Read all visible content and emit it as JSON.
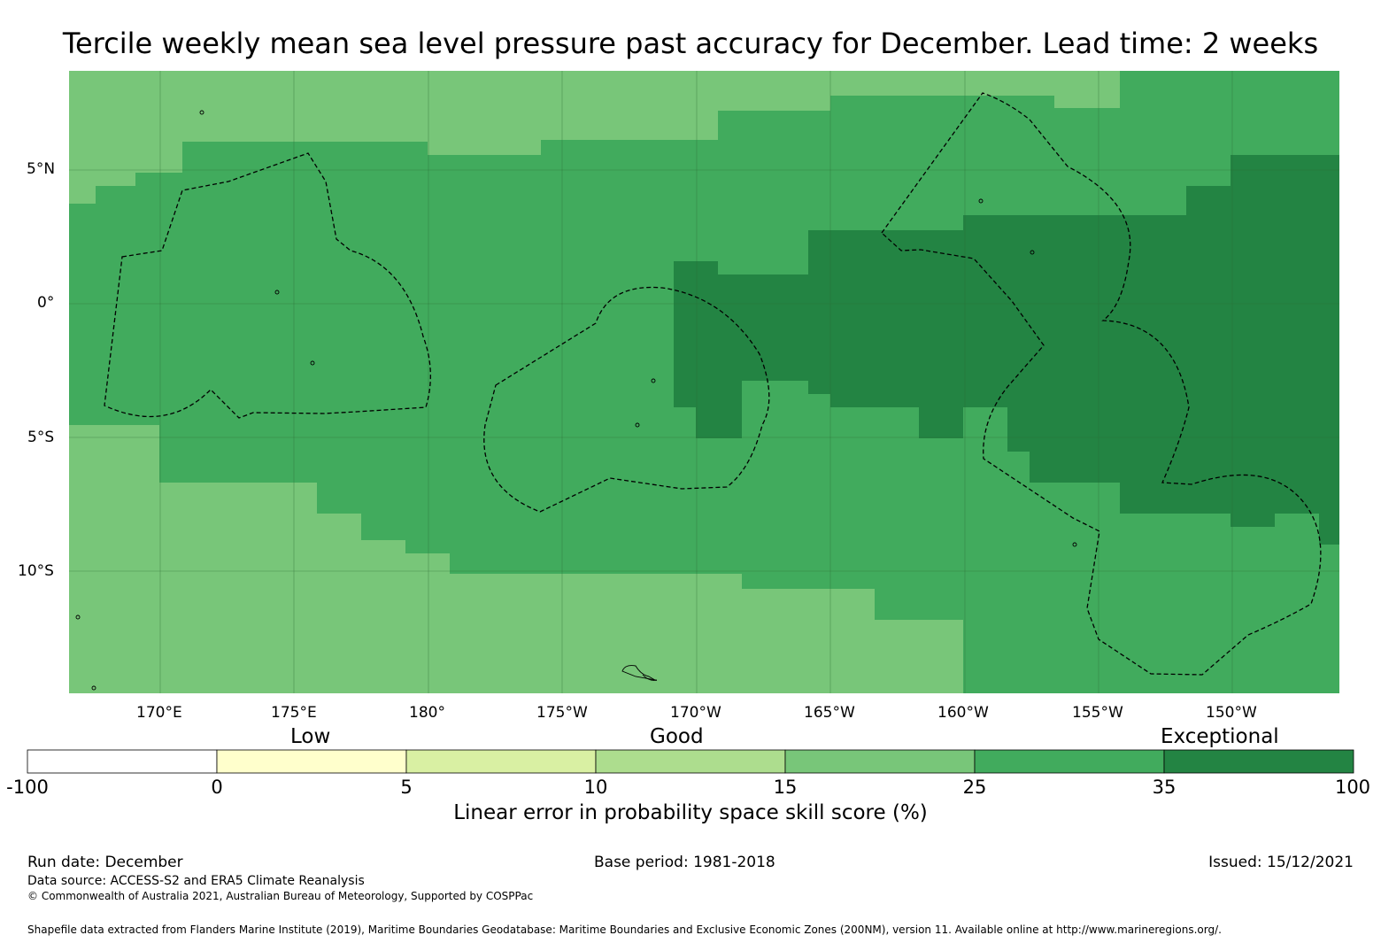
{
  "title": "Tercile weekly mean sea level pressure past accuracy for December. Lead time: 2 weeks",
  "map": {
    "lat_labels": [
      "5°N",
      "0°",
      "5°S",
      "10°S"
    ],
    "lon_labels": [
      "170°E",
      "175°E",
      "180°",
      "175°W",
      "170°W",
      "165°W",
      "160°W",
      "155°W",
      "150°W"
    ],
    "colors": {
      "band_15_25": "#78c679",
      "band_25_35": "#41ab5d",
      "band_35_100": "#238443",
      "gridline": "#2d6a35",
      "boundary": "#000000"
    }
  },
  "legend": {
    "categories": [
      "Low",
      "Good",
      "Exceptional"
    ],
    "ticks": [
      "-100",
      "0",
      "5",
      "10",
      "15",
      "25",
      "35",
      "100"
    ],
    "colors": [
      "#ffffff",
      "#ffffcc",
      "#d9f0a3",
      "#addd8e",
      "#78c679",
      "#41ab5d",
      "#238443"
    ],
    "label": "Linear error in probability space skill score (%)"
  },
  "footer": {
    "run_date": "Run date: December",
    "base_period": "Base period: 1981-2018",
    "issued": "Issued: 15/12/2021",
    "data_source": "Data source: ACCESS-S2 and ERA5 Climate Reanalysis",
    "copyright": "© Commonwealth of Australia 2021, Australian Bureau of Meteorology, Supported by COSPPac",
    "shapefile": "Shapefile data extracted from Flanders Marine Institute (2019), Maritime Boundaries Geodatabase: Maritime Boundaries and Exclusive Economic Zones (200NM), version 11. Available online at http://www.marineregions.org/."
  }
}
